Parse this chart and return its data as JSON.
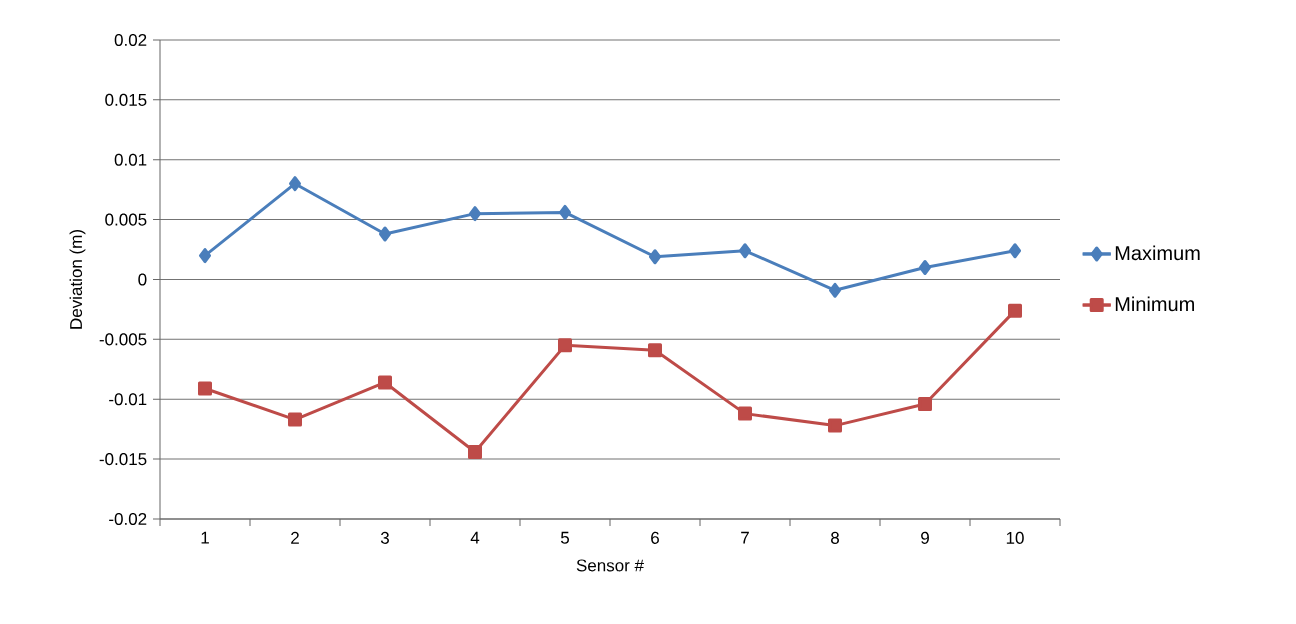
{
  "chart_data": {
    "type": "line",
    "xlabel": "Sensor #",
    "ylabel": "Deviation (m)",
    "categories": [
      "1",
      "2",
      "3",
      "4",
      "5",
      "6",
      "7",
      "8",
      "9",
      "10"
    ],
    "series": [
      {
        "name": "Maximum",
        "color": "#4a7ebb",
        "marker": "diamond",
        "values": [
          0.002,
          0.008,
          0.0038,
          0.0055,
          0.0056,
          0.0019,
          0.0024,
          -0.0009,
          0.001,
          0.0024
        ]
      },
      {
        "name": "Minimum",
        "color": "#be4b48",
        "marker": "square",
        "values": [
          -0.0091,
          -0.0117,
          -0.0086,
          -0.0144,
          -0.0055,
          -0.0059,
          -0.0112,
          -0.0122,
          -0.0104,
          -0.0026
        ]
      }
    ],
    "ylim": [
      -0.02,
      0.02
    ],
    "yticks": [
      -0.02,
      -0.015,
      -0.01,
      -0.005,
      0,
      0.005,
      0.01,
      0.015,
      0.02
    ],
    "grid": "y",
    "legend": "right",
    "line_style": "solid"
  }
}
